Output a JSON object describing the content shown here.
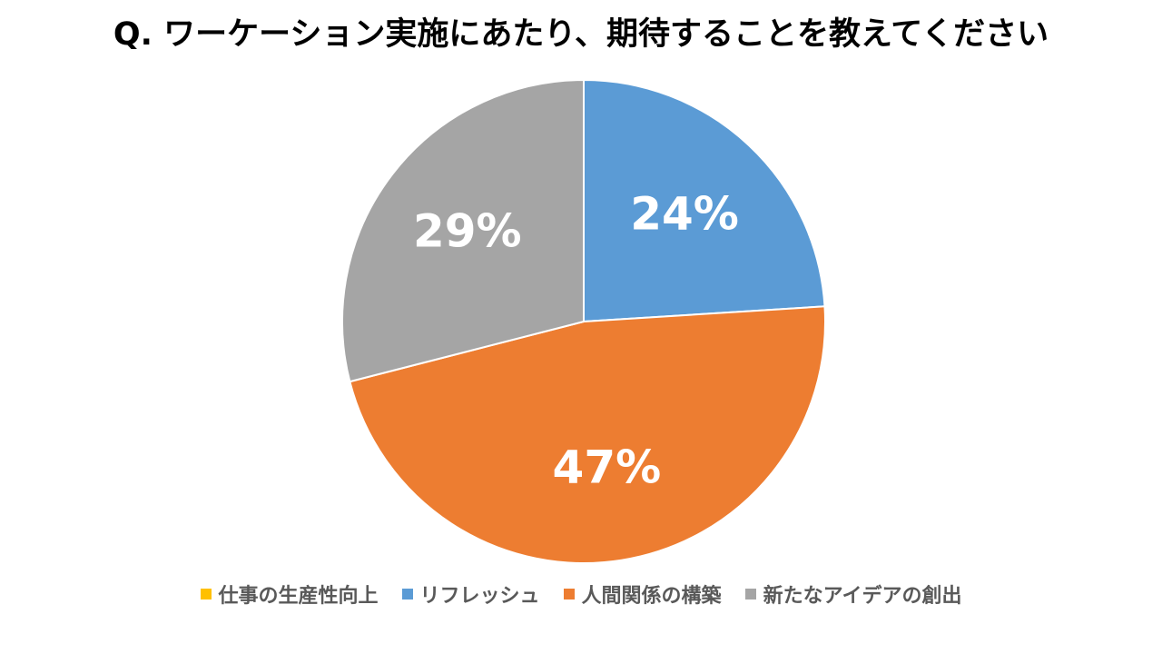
{
  "chart_data": {
    "type": "pie",
    "title": "Q. ワーケーション実施にあたり、期待することを教えてください",
    "slices": [
      {
        "label": "仕事の生産性向上",
        "value": 0,
        "color": "#FFC000",
        "data_label": ""
      },
      {
        "label": "リフレッシュ",
        "value": 24,
        "color": "#5B9BD5",
        "data_label": "24%"
      },
      {
        "label": "人間関係の構築",
        "value": 47,
        "color": "#ED7D31",
        "data_label": "47%"
      },
      {
        "label": "新たなアイデアの創出",
        "value": 29,
        "color": "#A5A5A5",
        "data_label": "29%"
      }
    ],
    "legend_position": "bottom",
    "start_angle": "12 o'clock",
    "direction": "clockwise"
  }
}
